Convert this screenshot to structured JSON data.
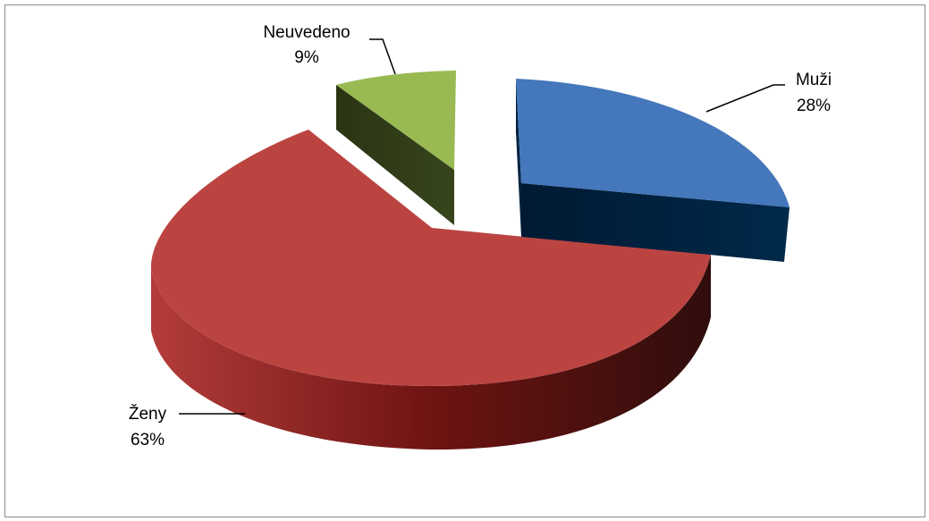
{
  "chart_data": {
    "type": "pie",
    "style": "3d-exploded",
    "title": "",
    "series": [
      {
        "name": "Muži",
        "value": 28,
        "label": "28%",
        "color": "#4477BB",
        "side_color": "#00223F"
      },
      {
        "name": "Ženy",
        "value": 63,
        "label": "63%",
        "color": "#BB4441",
        "side_color": "#5E1313"
      },
      {
        "name": "Neuvedeno",
        "value": 9,
        "label": "9%",
        "color": "#99B952",
        "side_color": "#2E3A17"
      }
    ],
    "legend": "none",
    "data_labels": "outside with leader lines"
  }
}
